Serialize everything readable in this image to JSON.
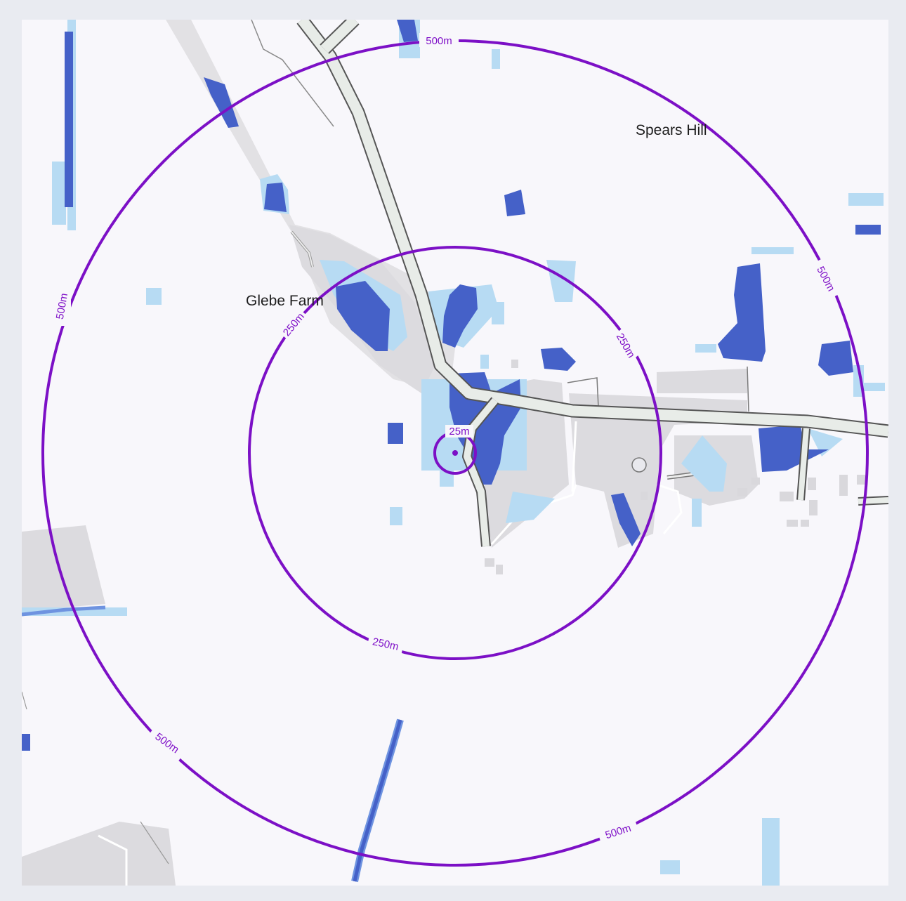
{
  "map": {
    "places": [
      {
        "key": "glebe",
        "name": "Glebe Farm"
      },
      {
        "key": "spears",
        "name": "Spears Hill"
      }
    ],
    "buffer_rings": {
      "inner": "25m",
      "middle": "250m",
      "outer": "500m"
    },
    "colors": {
      "ring": "#7c10c6",
      "flood_high": "#4561c8",
      "flood_medium": "#6e93e0",
      "flood_low": "#b7dbf3",
      "road_fill": "#e8ece8",
      "road_casing": "#555555",
      "building": "#dcdbdf",
      "background": "#f8f7fb"
    }
  }
}
